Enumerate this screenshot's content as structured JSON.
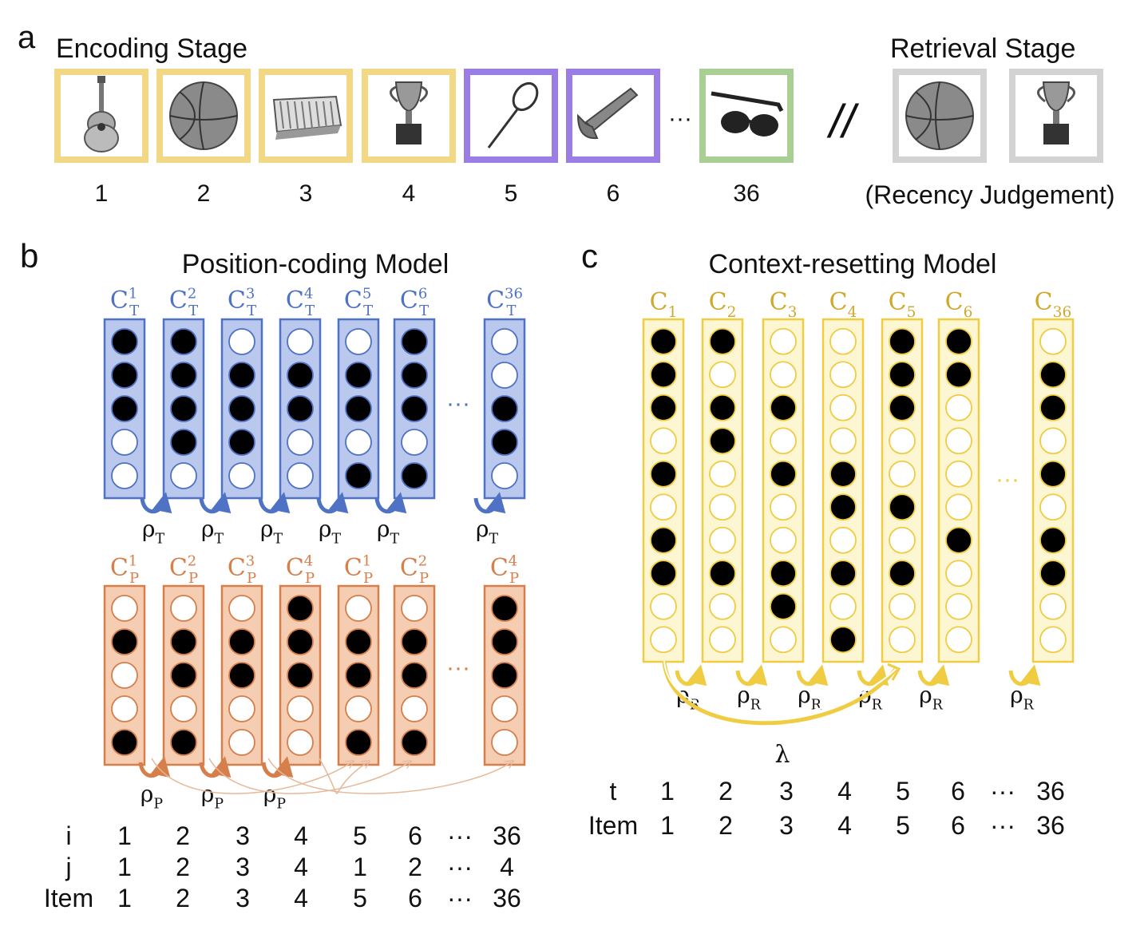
{
  "colors": {
    "encoding_frame": "#f2d784",
    "purple_frame": "#9a7ee6",
    "green_frame": "#a9cf94",
    "retrieval_frame": "#d3d3d3",
    "blue_stroke": "#4f72c4",
    "blue_fill": "#b9c8ec",
    "orange_stroke": "#d67f4b",
    "orange_fill": "#f5cdb3",
    "yellow_stroke": "#efcc42",
    "yellow_fill": "#fdf6d2",
    "blue_label": "#4f72c4",
    "orange_label": "#d67f4b",
    "yellow_label": "#cfa92d"
  },
  "panel_a": {
    "letter": "a",
    "encoding_title": "Encoding Stage",
    "retrieval_title": "Retrieval Stage",
    "retrieval_caption": "(Recency Judgement)",
    "separator": "//",
    "ellipsis": "···",
    "encoding_items": [
      {
        "icon": "guitar-icon",
        "frame": "encoding_frame",
        "label": "1"
      },
      {
        "icon": "basketball-icon",
        "frame": "encoding_frame",
        "label": "2"
      },
      {
        "icon": "crate-icon",
        "frame": "encoding_frame",
        "label": "3"
      },
      {
        "icon": "trophy-icon",
        "frame": "encoding_frame",
        "label": "4"
      },
      {
        "icon": "racket-icon",
        "frame": "purple_frame",
        "label": "5"
      },
      {
        "icon": "wrench-icon",
        "frame": "purple_frame",
        "label": "6"
      },
      {
        "icon": "sunglasses-icon",
        "frame": "green_frame",
        "label": "36"
      }
    ],
    "retrieval_items": [
      {
        "icon": "basketball-icon"
      },
      {
        "icon": "trophy-icon"
      }
    ]
  },
  "panel_b": {
    "letter": "b",
    "title": "Position-coding Model",
    "ellipsis": "···",
    "temporal_layer": {
      "columns": [
        {
          "base": "C",
          "sub": "T",
          "sup": "1",
          "units": [
            1,
            1,
            1,
            0,
            0
          ]
        },
        {
          "base": "C",
          "sub": "T",
          "sup": "2",
          "units": [
            1,
            1,
            1,
            1,
            0
          ]
        },
        {
          "base": "C",
          "sub": "T",
          "sup": "3",
          "units": [
            0,
            1,
            1,
            1,
            0
          ]
        },
        {
          "base": "C",
          "sub": "T",
          "sup": "4",
          "units": [
            0,
            1,
            1,
            0,
            0
          ]
        },
        {
          "base": "C",
          "sub": "T",
          "sup": "5",
          "units": [
            0,
            1,
            1,
            0,
            1
          ]
        },
        {
          "base": "C",
          "sub": "T",
          "sup": "6",
          "units": [
            1,
            1,
            1,
            0,
            1
          ]
        },
        {
          "base": "C",
          "sub": "T",
          "sup": "36",
          "units": [
            0,
            0,
            1,
            1,
            0
          ]
        }
      ],
      "drift_label": {
        "base": "ρ",
        "sub": "T"
      }
    },
    "position_layer": {
      "columns": [
        {
          "base": "C",
          "sub": "P",
          "sup": "1",
          "units": [
            0,
            1,
            0,
            0,
            1
          ]
        },
        {
          "base": "C",
          "sub": "P",
          "sup": "2",
          "units": [
            0,
            1,
            1,
            0,
            1
          ]
        },
        {
          "base": "C",
          "sub": "P",
          "sup": "3",
          "units": [
            0,
            1,
            1,
            0,
            0
          ]
        },
        {
          "base": "C",
          "sub": "P",
          "sup": "4",
          "units": [
            1,
            1,
            1,
            0,
            0
          ]
        },
        {
          "base": "C",
          "sub": "P",
          "sup": "1",
          "units": [
            0,
            1,
            1,
            0,
            1
          ]
        },
        {
          "base": "C",
          "sub": "P",
          "sup": "2",
          "units": [
            0,
            1,
            1,
            0,
            1
          ]
        },
        {
          "base": "C",
          "sub": "P",
          "sup": "4",
          "units": [
            1,
            1,
            1,
            0,
            0
          ]
        }
      ],
      "drift_label": {
        "base": "ρ",
        "sub": "P"
      }
    },
    "index_table": [
      {
        "label": "i",
        "values": [
          "1",
          "2",
          "3",
          "4",
          "5",
          "6",
          "···",
          "36"
        ]
      },
      {
        "label": "j",
        "values": [
          "1",
          "2",
          "3",
          "4",
          "1",
          "2",
          "···",
          "4"
        ]
      },
      {
        "label": "Item",
        "values": [
          "1",
          "2",
          "3",
          "4",
          "5",
          "6",
          "···",
          "36"
        ]
      }
    ]
  },
  "panel_c": {
    "letter": "c",
    "title": "Context-resetting Model",
    "ellipsis": "···",
    "columns": [
      {
        "base": "C",
        "sub": "1",
        "units": [
          1,
          1,
          1,
          0,
          1,
          0,
          1,
          1,
          0,
          0
        ]
      },
      {
        "base": "C",
        "sub": "2",
        "units": [
          1,
          0,
          1,
          1,
          0,
          0,
          0,
          1,
          0,
          0
        ]
      },
      {
        "base": "C",
        "sub": "3",
        "units": [
          0,
          0,
          1,
          0,
          1,
          0,
          0,
          1,
          1,
          0
        ]
      },
      {
        "base": "C",
        "sub": "4",
        "units": [
          0,
          0,
          0,
          0,
          1,
          1,
          0,
          1,
          0,
          1
        ]
      },
      {
        "base": "C",
        "sub": "5",
        "units": [
          1,
          1,
          1,
          0,
          0,
          1,
          0,
          1,
          0,
          0
        ]
      },
      {
        "base": "C",
        "sub": "6",
        "units": [
          1,
          1,
          0,
          0,
          0,
          0,
          1,
          0,
          0,
          0
        ]
      },
      {
        "base": "C",
        "sub": "36",
        "units": [
          0,
          1,
          1,
          0,
          1,
          0,
          1,
          1,
          0,
          0
        ]
      }
    ],
    "drift_label": {
      "base": "ρ",
      "sub": "R"
    },
    "reset_label": "λ",
    "index_table": [
      {
        "label": "t",
        "values": [
          "1",
          "2",
          "3",
          "4",
          "5",
          "6",
          "···",
          "36"
        ]
      },
      {
        "label": "Item",
        "values": [
          "1",
          "2",
          "3",
          "4",
          "5",
          "6",
          "···",
          "36"
        ]
      }
    ]
  }
}
